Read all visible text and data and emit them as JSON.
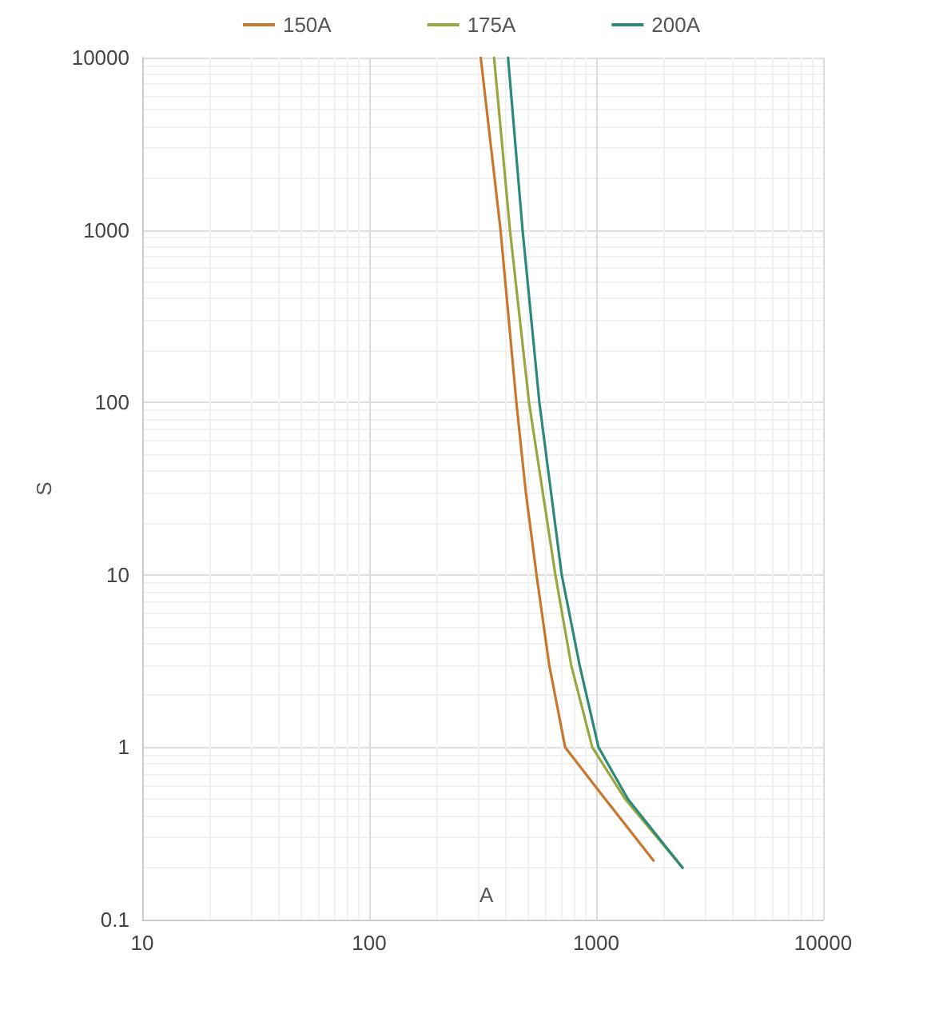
{
  "chart_data": {
    "type": "line",
    "xlabel": "A",
    "ylabel": "S",
    "log": "xy",
    "grid": true,
    "legend": "top",
    "marker": "none",
    "line_style": "solid",
    "xlim": [
      10,
      10000
    ],
    "xticks": [
      10,
      100,
      1000,
      10000
    ],
    "ylim": [
      0.1,
      10000
    ],
    "yticks": [
      0.1,
      1,
      10,
      100,
      1000,
      10000
    ],
    "series": [
      {
        "name": "150A",
        "color": "#c8772c",
        "x": [
          310,
          379,
          445,
          490,
          546,
          621,
          730,
          1110,
          1790
        ],
        "values": [
          10000,
          1000,
          100,
          30,
          10,
          3,
          1,
          0.49,
          0.22
        ]
      },
      {
        "name": "175A",
        "color": "#9aa740",
        "x": [
          355,
          417,
          506,
          661,
          776,
          961,
          1343,
          2400
        ],
        "values": [
          10000,
          1000,
          100,
          10,
          3,
          1,
          0.5,
          0.2
        ]
      },
      {
        "name": "200A",
        "color": "#2e8a78",
        "x": [
          409,
          474,
          562,
          705,
          845,
          1024,
          1380,
          2400
        ],
        "values": [
          10000,
          1000,
          100,
          10,
          3,
          1,
          0.5,
          0.2
        ]
      }
    ]
  }
}
